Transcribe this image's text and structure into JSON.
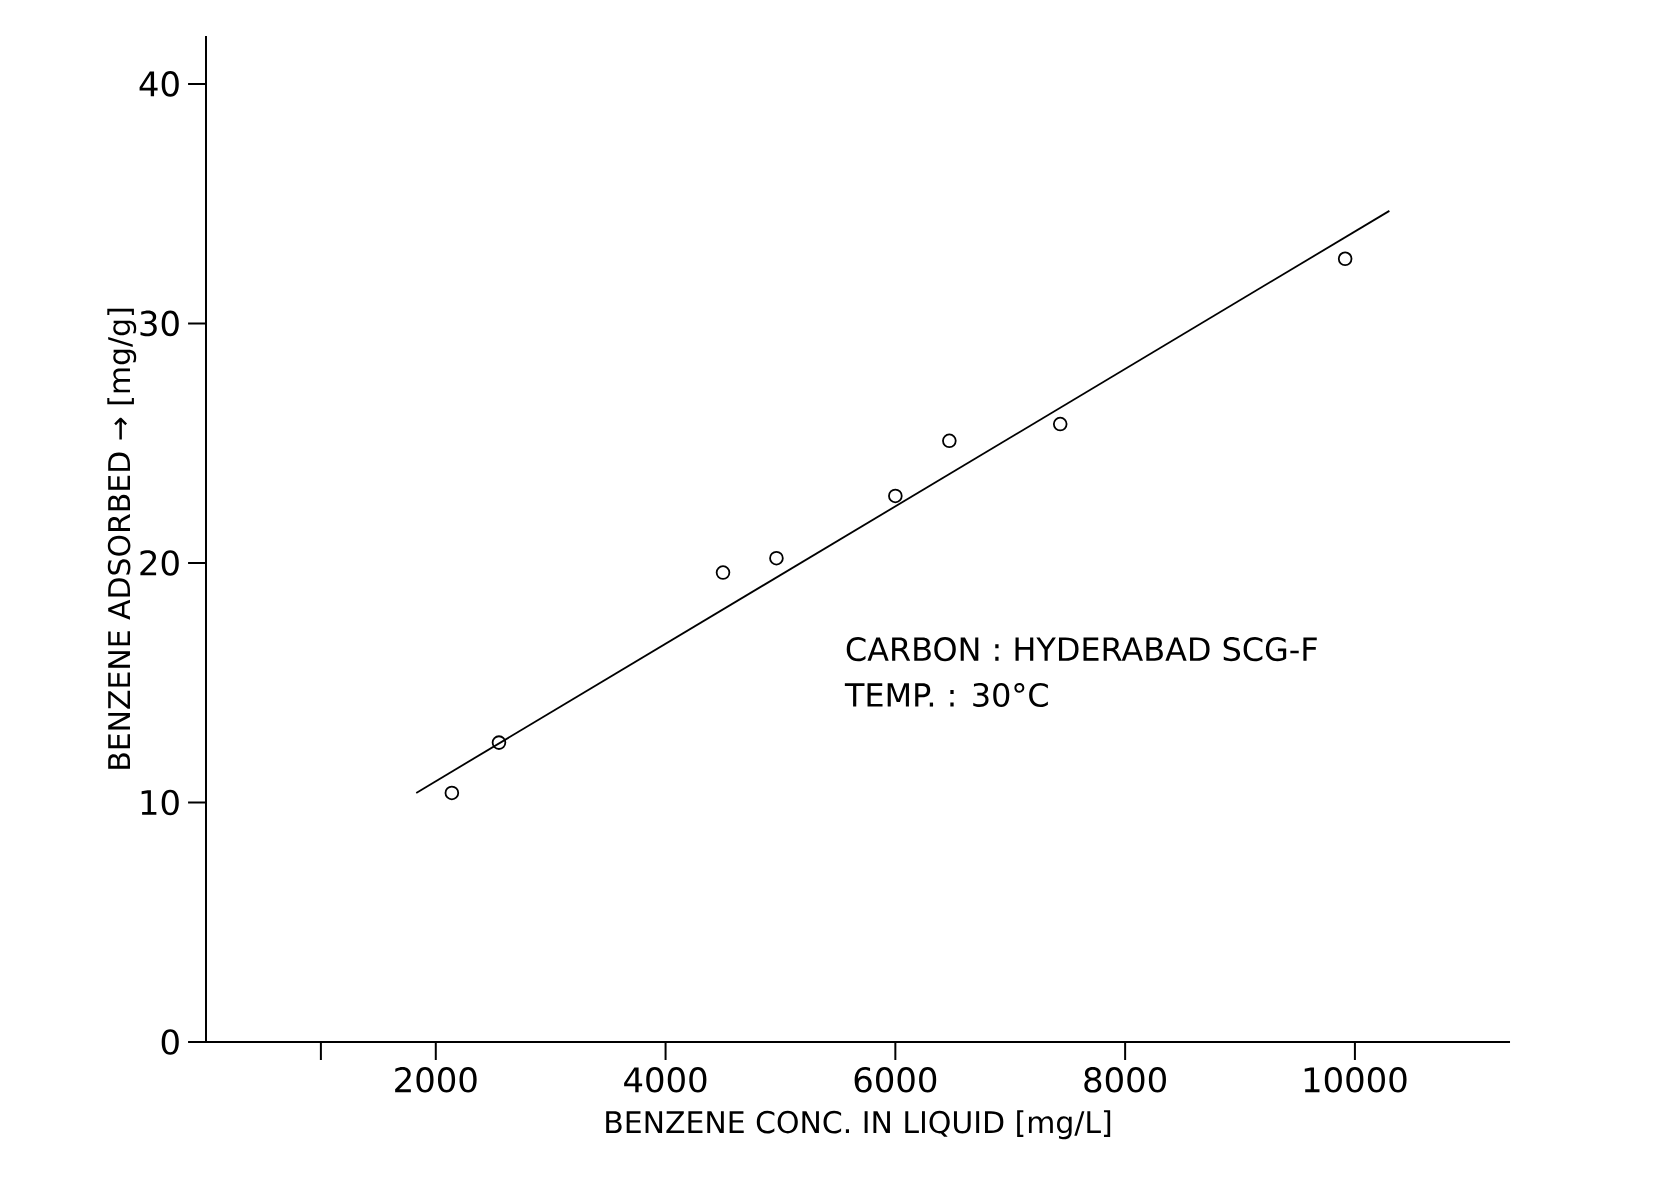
{
  "chart_data": {
    "type": "scatter",
    "xlabel": "BENZENE CONC. IN LIQUID [mg/L]",
    "ylabel": "BENZENE ADSORBED → [mg/g]",
    "xlim": [
      0,
      11350
    ],
    "ylim": [
      0,
      42
    ],
    "xticks": [
      {
        "value": 1000,
        "label": null
      },
      2000,
      4000,
      6000,
      8000,
      10000
    ],
    "yticks": [
      0,
      10,
      20,
      30,
      40
    ],
    "annotations": [
      "CARBON : HYDERABAD SCG-F",
      "TEMP. : 30°C"
    ],
    "series": [
      {
        "color": "#000000",
        "marker": "circle",
        "x": [
          2140,
          2550,
          4500,
          4965,
          6000,
          6470,
          7435,
          9915
        ],
        "values": [
          10.4,
          12.5,
          19.6,
          20.2,
          22.8,
          25.1,
          25.8,
          32.7
        ]
      },
      {
        "type": "line",
        "color": "#000000",
        "marker": "none",
        "line_style": "solid",
        "x": [
          1830,
          10300
        ],
        "values": [
          10.4,
          34.7
        ]
      }
    ]
  }
}
